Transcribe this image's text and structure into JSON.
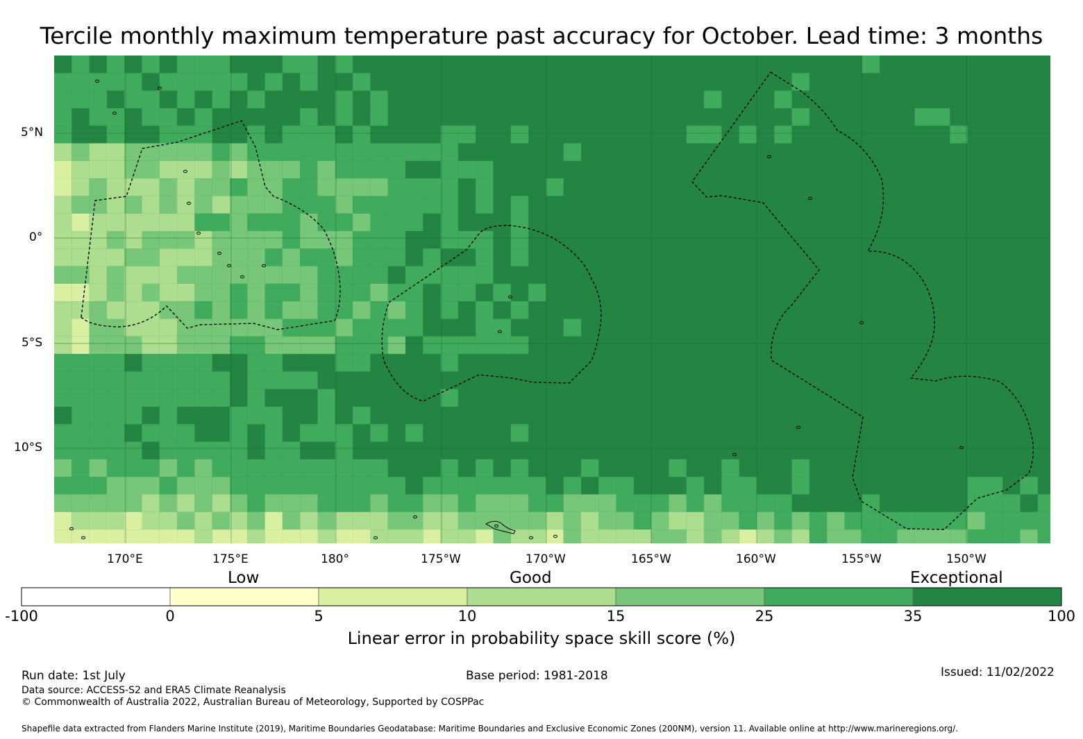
{
  "title": "Tercile monthly maximum temperature past accuracy for October. Lead time: 3 months",
  "map": {
    "lat_labels": [
      "5°N",
      "0°",
      "5°S",
      "10°S"
    ],
    "lon_labels": [
      "170°E",
      "175°E",
      "180°",
      "175°W",
      "170°W",
      "165°W",
      "160°W",
      "155°W",
      "150°W"
    ],
    "colors": {
      "lt0": "#ffffff",
      "c0_5": "#ffffcc",
      "c5_10": "#d9f0a3",
      "c10_15": "#addd8e",
      "c15_25": "#78c679",
      "c25_35": "#41ab5d",
      "c35_100": "#238443"
    },
    "eez_boundary_style": "dashed black"
  },
  "colorbar": {
    "categories": [
      "Low",
      "Good",
      "Exceptional"
    ],
    "ticks": [
      "-100",
      "0",
      "5",
      "10",
      "15",
      "25",
      "35",
      "100"
    ],
    "colors": [
      "#ffffff",
      "#ffffcc",
      "#d9f0a3",
      "#addd8e",
      "#78c679",
      "#41ab5d",
      "#238443"
    ],
    "label": "Linear error in probability space skill score (%)"
  },
  "footer": {
    "run_date": "Run date: 1st July",
    "base_period": "Base period: 1981-2018",
    "issued": "Issued: 11/02/2022",
    "data_source": "Data source: ACCESS-S2 and ERA5 Climate Reanalysis",
    "copyright": "© Commonwealth of Australia 2022, Australian Bureau of Meteorology, Supported by COSPPac",
    "shapefile": "Shapefile data extracted from Flanders Marine Institute (2019), Maritime Boundaries Geodatabase: Maritime Boundaries and Exclusive Economic Zones (200NM), version 11. Available online at http://www.marineregions.org/."
  }
}
